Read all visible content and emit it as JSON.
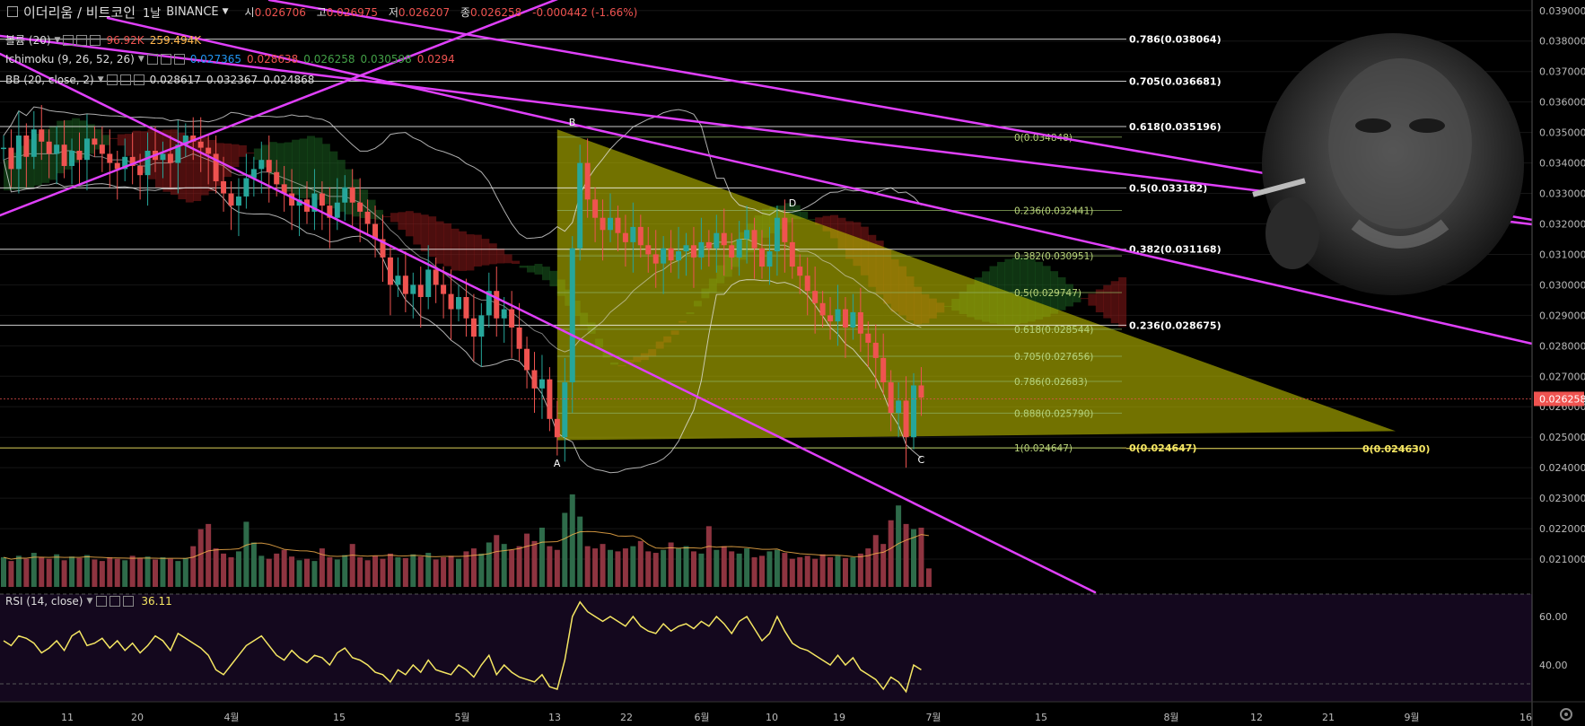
{
  "header": {
    "icon_name": "chart-square-icon",
    "symbol": "이더리움 / 비트코인",
    "interval": "1날",
    "exchange": "BINANCE",
    "ohlc": [
      {
        "k": "시",
        "v": "0.026706"
      },
      {
        "k": "고",
        "v": "0.026975"
      },
      {
        "k": "저",
        "v": "0.026207"
      },
      {
        "k": "종",
        "v": "0.026258"
      }
    ],
    "change": "-0.000442 (-1.66%)"
  },
  "indicators": [
    {
      "label": "볼륨 (20)",
      "values": [
        "96.92K",
        "259.494K"
      ],
      "colors": [
        "#ef5350",
        "#ffb74d"
      ]
    },
    {
      "label": "Ichimoku (9, 26, 52, 26)",
      "values": [
        "0.027365",
        "0.028638",
        "0.026258",
        "0.030598",
        "0.0294"
      ],
      "colors": [
        "#2196f3",
        "#ef5350",
        "#43a047",
        "#43a047",
        "#ef5350"
      ]
    },
    {
      "label": "BB (20, close, 2)",
      "values": [
        "0.028617",
        "0.032367",
        "0.024868"
      ],
      "colors": [
        "#dddddd",
        "#dddddd",
        "#dddddd"
      ]
    }
  ],
  "rsi": {
    "label": "RSI (14, close)",
    "value": "36.11",
    "color": "#f5e663"
  },
  "colors": {
    "bg": "#000000",
    "up": "#26a69a",
    "down": "#ef5350",
    "trend": "#e040fb",
    "triangle": "#b8b800",
    "fib_text_inner": "#b8d37a",
    "fib_text_outer": "#ffffff",
    "price_marker": "#ef5350",
    "last_label_yellow": "#f5e663"
  },
  "chart_data": {
    "type": "candlestick",
    "price_axis": {
      "min": 0.0205,
      "max": 0.0392,
      "ticks": [
        "0.039000",
        "0.038000",
        "0.037000",
        "0.036000",
        "0.035000",
        "0.034000",
        "0.033000",
        "0.032000",
        "0.031000",
        "0.030000",
        "0.029000",
        "0.028000",
        "0.027000",
        "0.026000",
        "0.025000",
        "0.024000",
        "0.023000",
        "0.022000",
        "0.021000"
      ],
      "last_price_label": "0.026258"
    },
    "time_axis": {
      "labels": [
        "11",
        "20",
        "4월",
        "15",
        "5월",
        "13",
        "22",
        "6월",
        "10",
        "19",
        "7월",
        "15",
        "8월",
        "12",
        "21",
        "9월",
        "16"
      ]
    },
    "fib_outer": [
      {
        "ratio": "0.786",
        "price": 0.038064,
        "label": "0.786(0.038064)"
      },
      {
        "ratio": "0.705",
        "price": 0.036681,
        "label": "0.705(0.036681)"
      },
      {
        "ratio": "0.618",
        "price": 0.035196,
        "label": "0.618(0.035196)"
      },
      {
        "ratio": "0.5",
        "price": 0.033182,
        "label": "0.5(0.033182)"
      },
      {
        "ratio": "0.382",
        "price": 0.031168,
        "label": "0.382(0.031168)"
      },
      {
        "ratio": "0.236",
        "price": 0.028675,
        "label": "0.236(0.028675)"
      },
      {
        "ratio": "0",
        "price": 0.024647,
        "label": "0(0.024647)"
      }
    ],
    "fib_inner": [
      {
        "ratio": "0",
        "price": 0.034848,
        "label": "0(0.034848)"
      },
      {
        "ratio": "0.236",
        "price": 0.032441,
        "label": "0.236(0.032441)"
      },
      {
        "ratio": "0.382",
        "price": 0.030951,
        "label": "0.382(0.030951)"
      },
      {
        "ratio": "0.5",
        "price": 0.029747,
        "label": "0.5(0.029747)"
      },
      {
        "ratio": "0.618",
        "price": 0.028544,
        "label": "0.618(0.028544)"
      },
      {
        "ratio": "0.705",
        "price": 0.027656,
        "label": "0.705(0.027656)"
      },
      {
        "ratio": "0.786",
        "price": 0.02683,
        "label": "0.786(0.02683)"
      },
      {
        "ratio": "0.888",
        "price": 0.02579,
        "label": "0.888(0.025790)"
      },
      {
        "ratio": "1",
        "price": 0.024647,
        "label": "1(0.024647)"
      }
    ],
    "extra_label": {
      "price": 0.02463,
      "label": "0(0.024630)"
    },
    "pattern_points": [
      {
        "name": "A",
        "price": 0.0249
      },
      {
        "name": "B",
        "price": 0.0351
      },
      {
        "name": "C",
        "price": 0.0249
      },
      {
        "name": "D",
        "price": 0.0323
      }
    ],
    "rsi_axis": {
      "ticks": [
        "60.00",
        "40.00"
      ]
    },
    "candles_close": [
      0.0345,
      0.0338,
      0.0349,
      0.0342,
      0.0351,
      0.0347,
      0.0343,
      0.0346,
      0.0339,
      0.0344,
      0.0341,
      0.0348,
      0.0346,
      0.0343,
      0.034,
      0.0338,
      0.0342,
      0.0339,
      0.0336,
      0.0344,
      0.0341,
      0.0343,
      0.034,
      0.0346,
      0.0349,
      0.0347,
      0.0345,
      0.0343,
      0.0334,
      0.033,
      0.0326,
      0.0329,
      0.0335,
      0.0338,
      0.0341,
      0.0337,
      0.0333,
      0.033,
      0.0326,
      0.0328,
      0.0324,
      0.033,
      0.0326,
      0.0322,
      0.0327,
      0.0332,
      0.0327,
      0.0324,
      0.032,
      0.0315,
      0.0309,
      0.03,
      0.0303,
      0.0297,
      0.03,
      0.0296,
      0.0305,
      0.03,
      0.0297,
      0.0292,
      0.0296,
      0.0289,
      0.0283,
      0.029,
      0.0298,
      0.0289,
      0.0292,
      0.0286,
      0.0279,
      0.0272,
      0.0266,
      0.0269,
      0.0256,
      0.025,
      0.0268,
      0.0312,
      0.034,
      0.0328,
      0.0322,
      0.0318,
      0.0322,
      0.0317,
      0.0314,
      0.0319,
      0.0313,
      0.031,
      0.0307,
      0.0312,
      0.0308,
      0.0311,
      0.0313,
      0.0309,
      0.0314,
      0.0312,
      0.0317,
      0.0313,
      0.0309,
      0.0315,
      0.0318,
      0.0312,
      0.0306,
      0.0311,
      0.0322,
      0.0314,
      0.0306,
      0.0303,
      0.0298,
      0.0294,
      0.029,
      0.0288,
      0.0292,
      0.0286,
      0.0291,
      0.0284,
      0.0281,
      0.0276,
      0.0268,
      0.0258,
      0.0262,
      0.025,
      0.0267,
      0.0263
    ],
    "volume": [
      0.4,
      0.35,
      0.42,
      0.38,
      0.46,
      0.4,
      0.38,
      0.44,
      0.36,
      0.41,
      0.39,
      0.43,
      0.37,
      0.35,
      0.4,
      0.38,
      0.36,
      0.42,
      0.39,
      0.41,
      0.37,
      0.4,
      0.38,
      0.35,
      0.39,
      0.55,
      0.78,
      0.85,
      0.52,
      0.45,
      0.4,
      0.48,
      0.88,
      0.6,
      0.42,
      0.38,
      0.45,
      0.5,
      0.41,
      0.36,
      0.38,
      0.35,
      0.52,
      0.4,
      0.37,
      0.43,
      0.58,
      0.4,
      0.36,
      0.42,
      0.38,
      0.45,
      0.4,
      0.39,
      0.44,
      0.41,
      0.46,
      0.37,
      0.4,
      0.42,
      0.38,
      0.48,
      0.52,
      0.45,
      0.6,
      0.7,
      0.58,
      0.5,
      0.55,
      0.72,
      0.62,
      0.8,
      0.55,
      0.5,
      1.0,
      1.25,
      0.95,
      0.55,
      0.52,
      0.58,
      0.5,
      0.48,
      0.52,
      0.55,
      0.62,
      0.48,
      0.46,
      0.5,
      0.6,
      0.52,
      0.55,
      0.48,
      0.45,
      0.82,
      0.5,
      0.55,
      0.48,
      0.45,
      0.52,
      0.4,
      0.42,
      0.48,
      0.5,
      0.46,
      0.38,
      0.4,
      0.42,
      0.38,
      0.44,
      0.4,
      0.42,
      0.39,
      0.4,
      0.45,
      0.52,
      0.7,
      0.58,
      0.9,
      1.1,
      0.85,
      0.78,
      0.8,
      0.25
    ],
    "rsi": [
      50,
      48,
      52,
      51,
      49,
      45,
      47,
      50,
      46,
      52,
      54,
      48,
      49,
      51,
      47,
      50,
      46,
      49,
      45,
      48,
      52,
      50,
      46,
      53,
      51,
      49,
      47,
      44,
      38,
      36,
      40,
      44,
      48,
      50,
      52,
      48,
      44,
      42,
      46,
      43,
      41,
      44,
      43,
      40,
      45,
      47,
      43,
      42,
      40,
      37,
      36,
      33,
      38,
      36,
      40,
      37,
      42,
      38,
      37,
      36,
      40,
      38,
      35,
      40,
      44,
      36,
      40,
      37,
      35,
      34,
      33,
      36,
      31,
      30,
      42,
      60,
      66,
      62,
      60,
      58,
      60,
      58,
      56,
      60,
      56,
      54,
      53,
      57,
      54,
      56,
      57,
      55,
      58,
      56,
      60,
      57,
      53,
      58,
      60,
      55,
      50,
      53,
      60,
      54,
      49,
      47,
      46,
      44,
      42,
      40,
      44,
      40,
      43,
      38,
      36,
      34,
      30,
      35,
      33,
      29,
      40,
      38
    ],
    "bb_mid": [
      0.0341,
      0.0342,
      0.0342,
      0.0343,
      0.0343,
      0.0343,
      0.0343,
      0.0343,
      0.0344,
      0.0344,
      0.0343,
      0.0343,
      0.0342,
      0.0342,
      0.0341,
      0.0341,
      0.0341,
      0.034,
      0.0339,
      0.0339,
      0.034,
      0.034,
      0.034,
      0.0341,
      0.0342,
      0.0343,
      0.0342,
      0.0341,
      0.034,
      0.0339,
      0.0337,
      0.0336,
      0.0336,
      0.0336,
      0.0337,
      0.0337,
      0.0336,
      0.0335,
      0.0334,
      0.0333,
      0.0332,
      0.0331,
      0.033,
      0.0329,
      0.0329,
      0.0329,
      0.0328,
      0.0327,
      0.0325,
      0.0323,
      0.0321,
      0.0318,
      0.0316,
      0.0313,
      0.0311,
      0.0309,
      0.0308,
      0.0306,
      0.0304,
      0.0302,
      0.03,
      0.0298,
      0.0296,
      0.0295,
      0.0295,
      0.0294,
      0.0293,
      0.0291,
      0.0289,
      0.0287,
      0.0285,
      0.0284,
      0.0281,
      0.0279,
      0.0278,
      0.0279,
      0.0282,
      0.0284,
      0.0286,
      0.0288,
      0.0291,
      0.0293,
      0.0295,
      0.0298,
      0.03,
      0.0302,
      0.0304,
      0.0305,
      0.0307,
      0.0308,
      0.031,
      0.0311,
      0.0312,
      0.0313,
      0.0314,
      0.0314,
      0.0314,
      0.0315,
      0.0315,
      0.0314,
      0.0313,
      0.0313,
      0.0313,
      0.0313,
      0.0312,
      0.0311,
      0.0311,
      0.031,
      0.0308,
      0.0307,
      0.0305,
      0.0303,
      0.0302,
      0.03,
      0.0298,
      0.0297,
      0.0295,
      0.0292,
      0.029,
      0.0288,
      0.0287,
      0.0286
    ]
  }
}
